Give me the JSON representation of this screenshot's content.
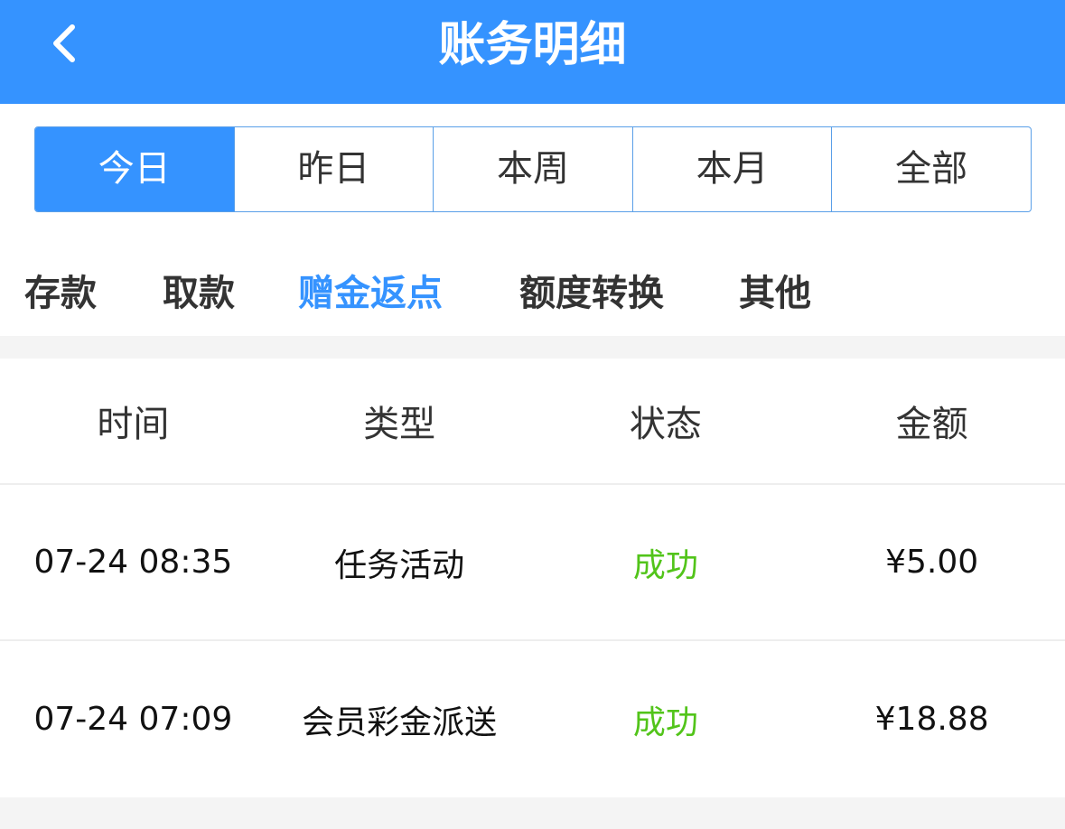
{
  "header": {
    "title": "账务明细",
    "back_icon": "chevron-left-icon"
  },
  "date_filter": {
    "options": [
      "今日",
      "昨日",
      "本周",
      "本月",
      "全部"
    ],
    "selected": "今日"
  },
  "categories": {
    "items": [
      "存款",
      "取款",
      "赠金返点",
      "额度转换",
      "其他"
    ],
    "selected": "赠金返点"
  },
  "table": {
    "columns": [
      "时间",
      "类型",
      "状态",
      "金额"
    ],
    "rows": [
      {
        "time": "07-24 08:35",
        "type": "任务活动",
        "status": "成功",
        "amount": "¥5.00"
      },
      {
        "time": "07-24 07:09",
        "type": "会员彩金派送",
        "status": "成功",
        "amount": "¥18.88"
      }
    ]
  },
  "colors": {
    "primary": "#3593ff",
    "success": "#52c41a"
  }
}
